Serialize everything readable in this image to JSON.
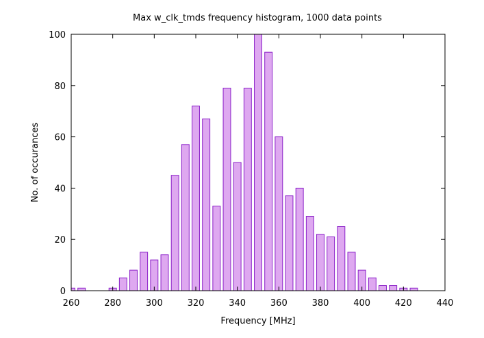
{
  "chart_data": {
    "type": "bar",
    "title": "Max w_clk_tmds frequency histogram, 1000 data points",
    "xlabel": "Frequency [MHz]",
    "ylabel": "No. of occurances",
    "xlim": [
      260,
      440
    ],
    "ylim": [
      0,
      100
    ],
    "xticks": [
      260,
      280,
      300,
      320,
      340,
      360,
      380,
      400,
      420,
      440
    ],
    "yticks": [
      0,
      20,
      40,
      60,
      80,
      100
    ],
    "bin_width": 5,
    "bar_fill": "#dea8f0",
    "bar_stroke": "#8a1fc8",
    "grid": false,
    "x": [
      260,
      265,
      270,
      275,
      280,
      285,
      290,
      295,
      300,
      305,
      310,
      315,
      320,
      325,
      330,
      335,
      340,
      345,
      350,
      355,
      360,
      365,
      370,
      375,
      380,
      385,
      390,
      395,
      400,
      405,
      410,
      415,
      420,
      425
    ],
    "values": [
      1,
      1,
      0,
      0,
      1,
      5,
      8,
      15,
      12,
      14,
      45,
      57,
      72,
      67,
      33,
      79,
      50,
      79,
      100,
      93,
      60,
      37,
      40,
      29,
      22,
      21,
      25,
      15,
      8,
      5,
      2,
      2,
      1,
      1
    ]
  }
}
